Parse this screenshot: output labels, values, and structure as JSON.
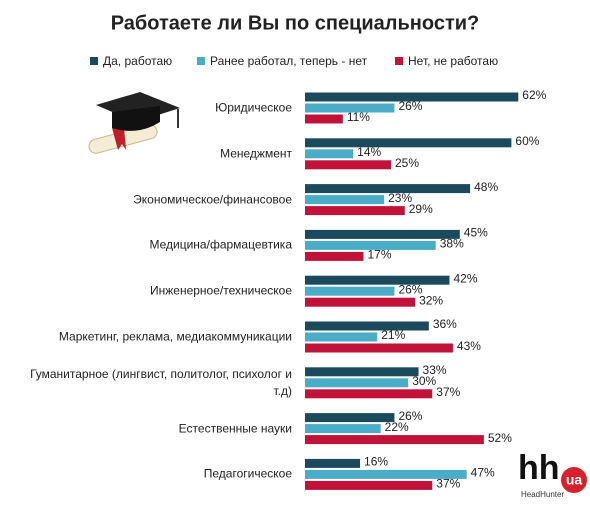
{
  "chart_data": {
    "type": "bar",
    "orientation": "horizontal",
    "title": "Работаете ли Вы по специальности?",
    "categories": [
      "Юридическое",
      "Менеджмент",
      "Экономическое/финансовое",
      "Медицина/фармацевтика",
      "Инженерное/техническое",
      "Маркетинг, реклама, медиакоммуникации",
      "Гуманитарное (лингвист, политолог, психолог и т.д)",
      "Естественные науки",
      "Педагогическое"
    ],
    "series": [
      {
        "name": "Да, работаю",
        "color": "#1b4a5c",
        "values": [
          62,
          60,
          48,
          45,
          42,
          36,
          33,
          26,
          16
        ],
        "value_labels": [
          "62%",
          "60%",
          "48%",
          "45%",
          "42%",
          "36%",
          "33%",
          "26%",
          "16%"
        ]
      },
      {
        "name": "Ранее работал, теперь - нет",
        "color": "#4aacc6",
        "values": [
          26,
          14,
          23,
          38,
          26,
          21,
          30,
          22,
          47
        ],
        "value_labels": [
          "26%",
          "14%",
          "23%",
          "38%",
          "26%",
          "21%",
          "30%",
          "22%",
          "47%"
        ]
      },
      {
        "name": "Нет, не работаю",
        "color": "#c1133a",
        "values": [
          11,
          25,
          29,
          17,
          32,
          43,
          37,
          52,
          37
        ],
        "value_labels": [
          "11%",
          "25%",
          "29%",
          "17%",
          "32%",
          "43%",
          "37%",
          "52%",
          "37%"
        ]
      }
    ],
    "legend": "top"
  },
  "logo": {
    "mark": "hh",
    "badge": "ua",
    "name": "HeadHunter"
  }
}
